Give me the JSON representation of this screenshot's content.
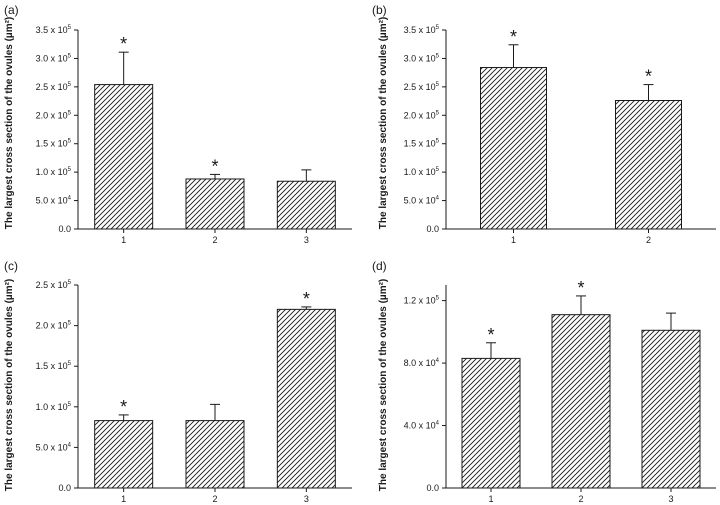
{
  "chart_data": [
    {
      "panel": "(a)",
      "type": "bar",
      "categories": [
        "1",
        "2",
        "3"
      ],
      "values": [
        254000,
        88000,
        84000
      ],
      "errors": [
        57000,
        8000,
        20000
      ],
      "significant": [
        true,
        true,
        false
      ],
      "ylabel": "The largest cross section of the ovules (µm²)",
      "ylim": [
        0,
        350000
      ],
      "yticks": [
        0,
        50000,
        100000,
        150000,
        200000,
        250000,
        300000,
        350000
      ],
      "ytick_labels": [
        "0.0",
        "5.0 x 10⁴",
        "1.0 x 10⁵",
        "1.5 x 10⁵",
        "2.0 x 10⁵",
        "2.5 x 10⁵",
        "3.0 x 10⁵",
        "3.5 x 10⁵"
      ],
      "marker": "*"
    },
    {
      "panel": "(b)",
      "type": "bar",
      "categories": [
        "1",
        "2"
      ],
      "values": [
        284000,
        226000
      ],
      "errors": [
        40000,
        28000
      ],
      "significant": [
        true,
        true
      ],
      "ylabel": "The largest cross section of the ovules (µm²)",
      "ylim": [
        0,
        350000
      ],
      "yticks": [
        0,
        50000,
        100000,
        150000,
        200000,
        250000,
        300000,
        350000
      ],
      "ytick_labels": [
        "0.0",
        "5.0 x 10⁴",
        "1.0 x 10⁵",
        "1.5 x 10⁵",
        "2.0 x 10⁵",
        "2.5 x 10⁵",
        "3.0 x 10⁵",
        "3.5 x 10⁵"
      ],
      "marker": "*"
    },
    {
      "panel": "(c)",
      "type": "bar",
      "categories": [
        "1",
        "2",
        "3"
      ],
      "values": [
        83000,
        83000,
        220000
      ],
      "errors": [
        7000,
        20000,
        3000
      ],
      "significant": [
        true,
        false,
        true
      ],
      "ylabel": "The largest cross section of the ovules (µm²)",
      "ylim": [
        0,
        250000
      ],
      "yticks": [
        0,
        50000,
        100000,
        150000,
        200000,
        250000
      ],
      "ytick_labels": [
        "0.0",
        "5.0 x 10⁴",
        "1.0 x 10⁵",
        "1.5 x 10⁵",
        "2.0 x 10⁵",
        "2.5 x 10⁵"
      ],
      "marker": "*"
    },
    {
      "panel": "(d)",
      "type": "bar",
      "categories": [
        "1",
        "2",
        "3"
      ],
      "values": [
        83000,
        111000,
        101000
      ],
      "errors": [
        10000,
        12000,
        11000
      ],
      "significant": [
        true,
        true,
        false
      ],
      "ylabel": "The largest cross section of the ovules (µm²)",
      "ylim": [
        0,
        130000
      ],
      "yticks": [
        0,
        40000,
        80000,
        120000
      ],
      "ytick_labels": [
        "0.0",
        "4.0 x 10⁴",
        "8.0 x 10⁴",
        "1.2 x 10⁵"
      ],
      "marker": "*"
    }
  ],
  "colors": {
    "ink": "#1a1a1a",
    "fill": "#ffffff"
  }
}
